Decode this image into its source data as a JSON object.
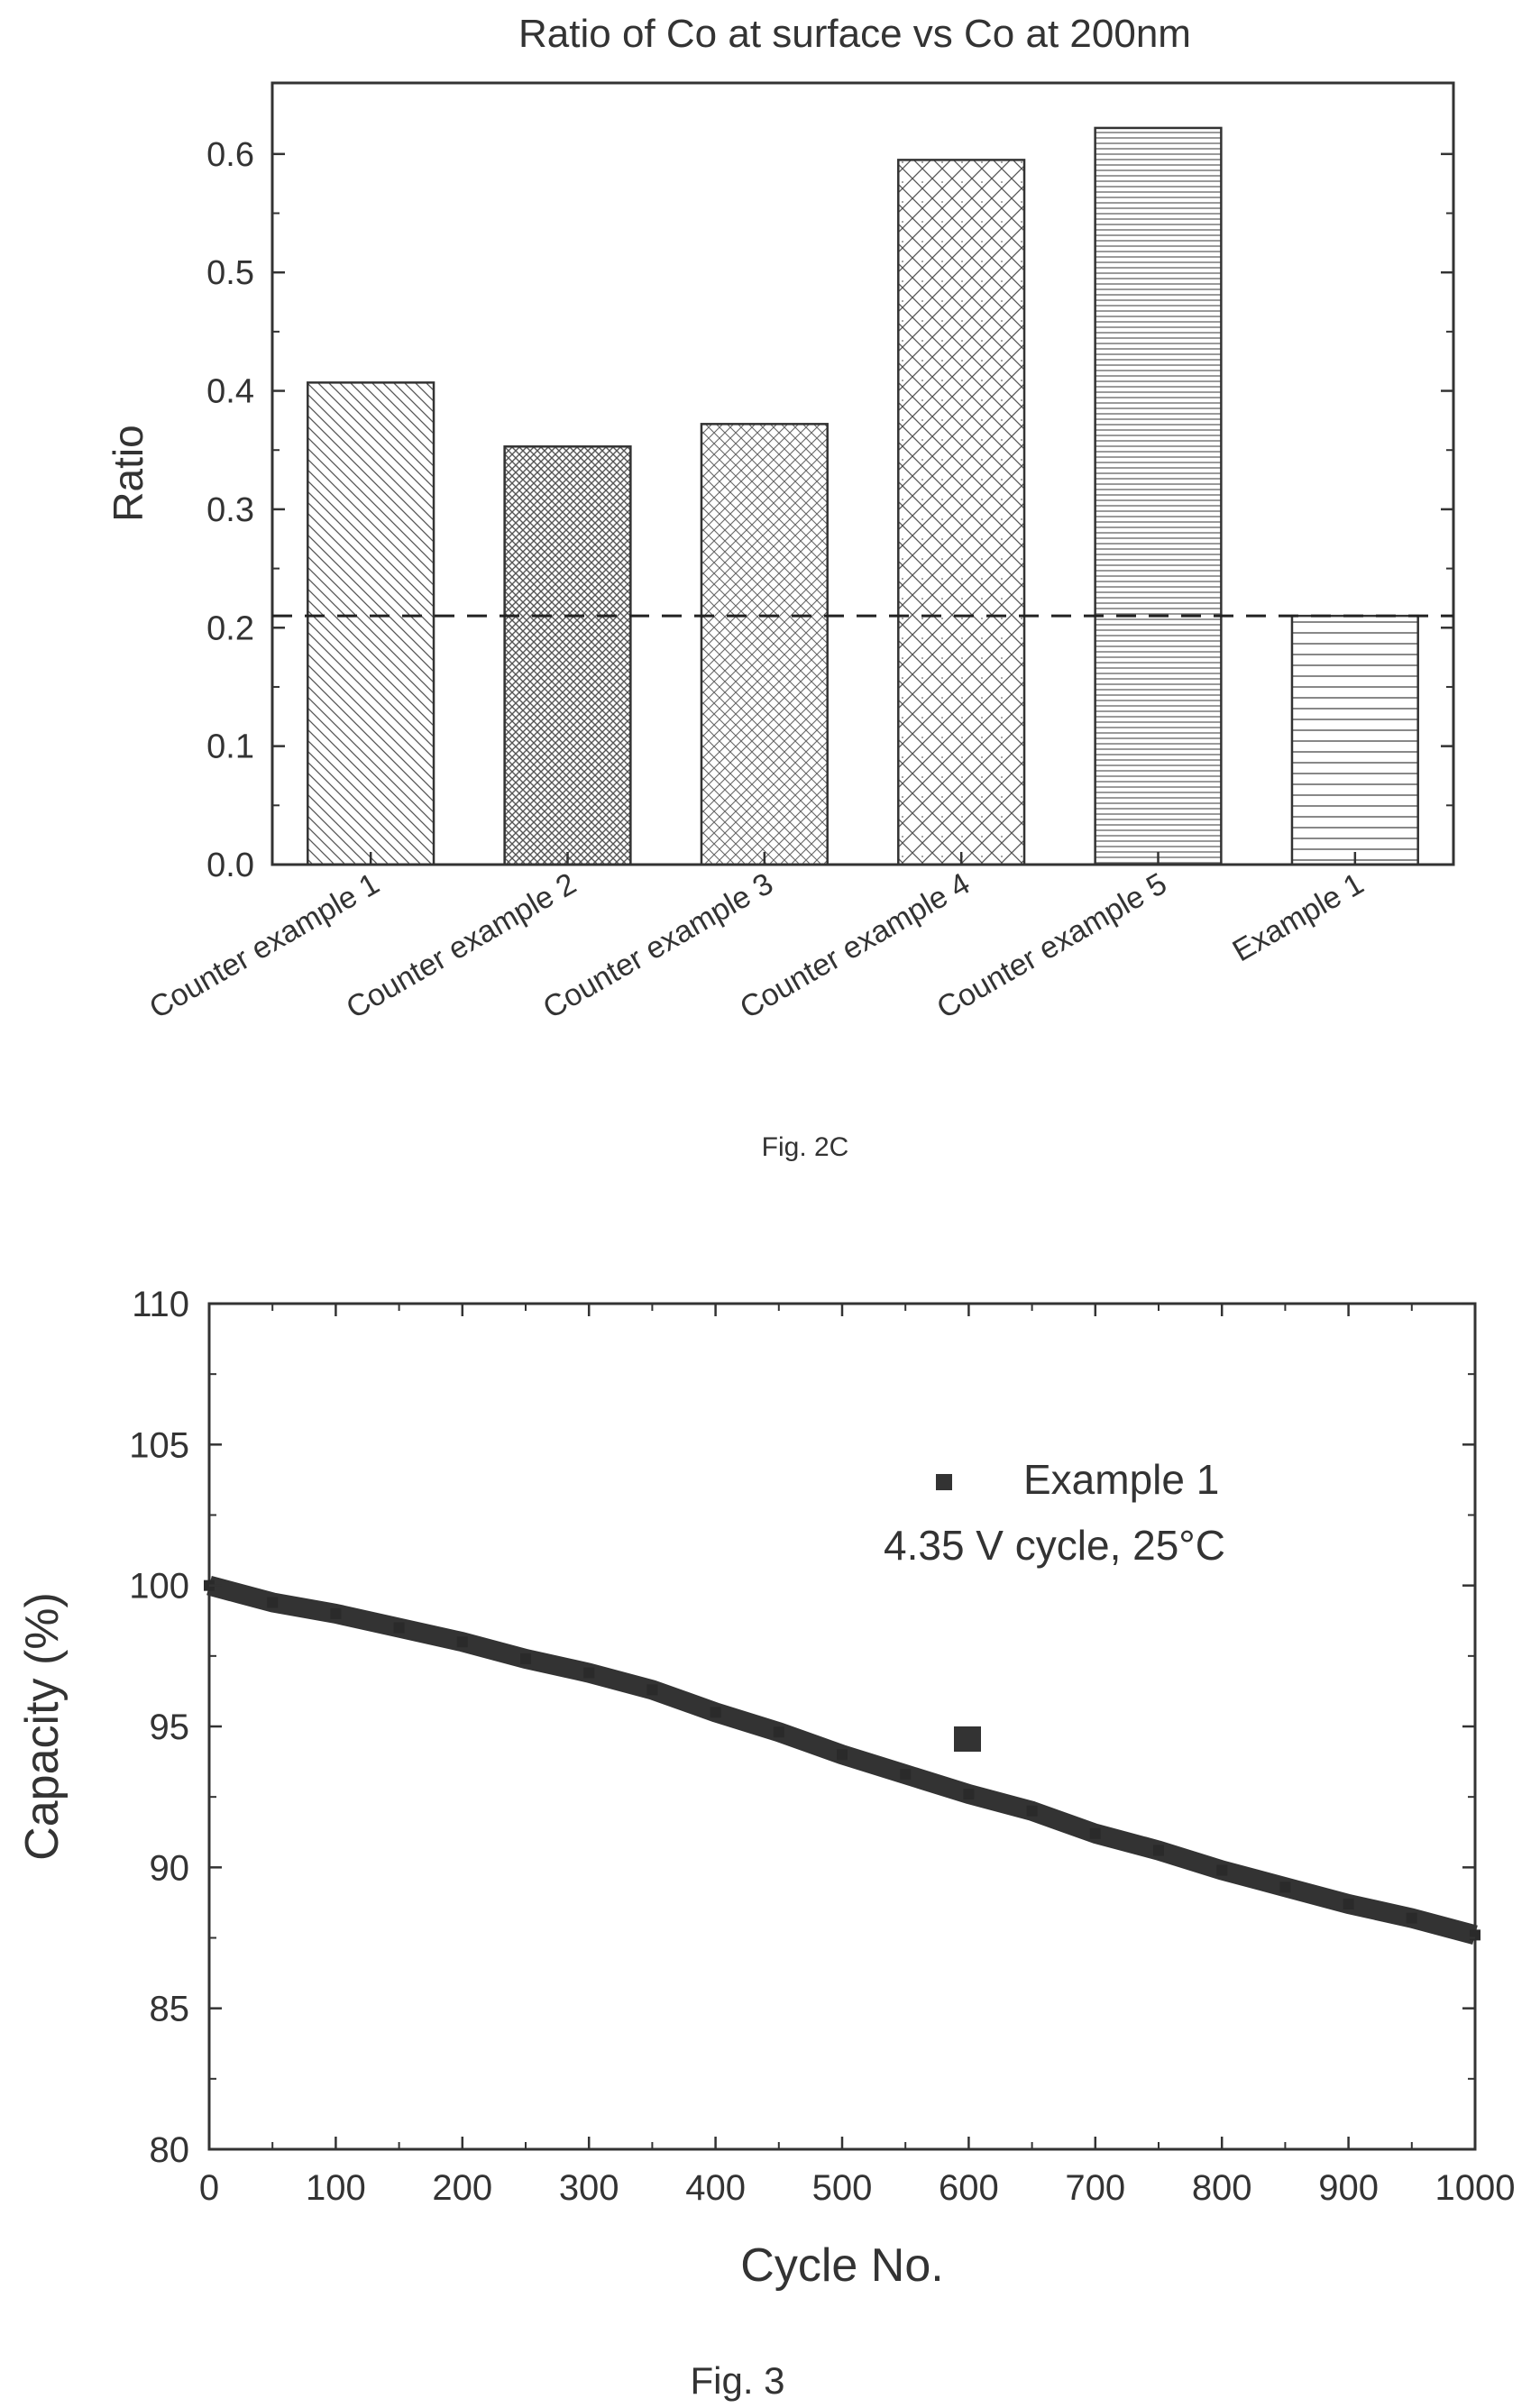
{
  "chart_data": [
    {
      "type": "bar",
      "title": "Ratio of Co at surface vs Co at 200nm",
      "caption": "Fig. 2C",
      "xlabel": "",
      "ylabel": "Ratio",
      "categories": [
        "Counter example 1",
        "Counter example 2",
        "Counter example 3",
        "Counter example 4",
        "Counter example 5",
        "Example 1"
      ],
      "values": [
        0.407,
        0.353,
        0.372,
        0.595,
        0.622,
        0.21
      ],
      "patterns": [
        "diag-right",
        "dense-cross",
        "fine-cross",
        "coarse-cross",
        "horizontal-dense",
        "horizontal"
      ],
      "ylim": [
        0.0,
        0.66
      ],
      "yticks": [
        "0.0",
        "0.1",
        "0.2",
        "0.3",
        "0.4",
        "0.5",
        "0.6"
      ],
      "reference_line": 0.21,
      "grid": false
    },
    {
      "type": "scatter",
      "caption": "Fig. 3",
      "xlabel": "Cycle No.",
      "ylabel": "Capacity (%)",
      "xlim": [
        0,
        1000
      ],
      "ylim": [
        80,
        110
      ],
      "xticks": [
        "0",
        "100",
        "200",
        "300",
        "400",
        "500",
        "600",
        "700",
        "800",
        "900",
        "1000"
      ],
      "yticks": [
        "80",
        "85",
        "90",
        "95",
        "100",
        "105",
        "110"
      ],
      "legend": {
        "entry": "Example 1",
        "note": "4.35 V cycle, 25°C",
        "position": "top-right"
      },
      "series": [
        {
          "name": "Example 1",
          "x": [
            0,
            50,
            100,
            150,
            200,
            250,
            300,
            350,
            400,
            450,
            500,
            550,
            600,
            650,
            700,
            750,
            800,
            850,
            900,
            950,
            1000
          ],
          "y": [
            100.0,
            99.4,
            99.0,
            98.5,
            98.0,
            97.4,
            96.9,
            96.3,
            95.5,
            94.8,
            94.0,
            93.3,
            92.6,
            92.0,
            91.2,
            90.6,
            89.9,
            89.3,
            88.7,
            88.2,
            87.6
          ]
        }
      ],
      "grid": false
    }
  ]
}
